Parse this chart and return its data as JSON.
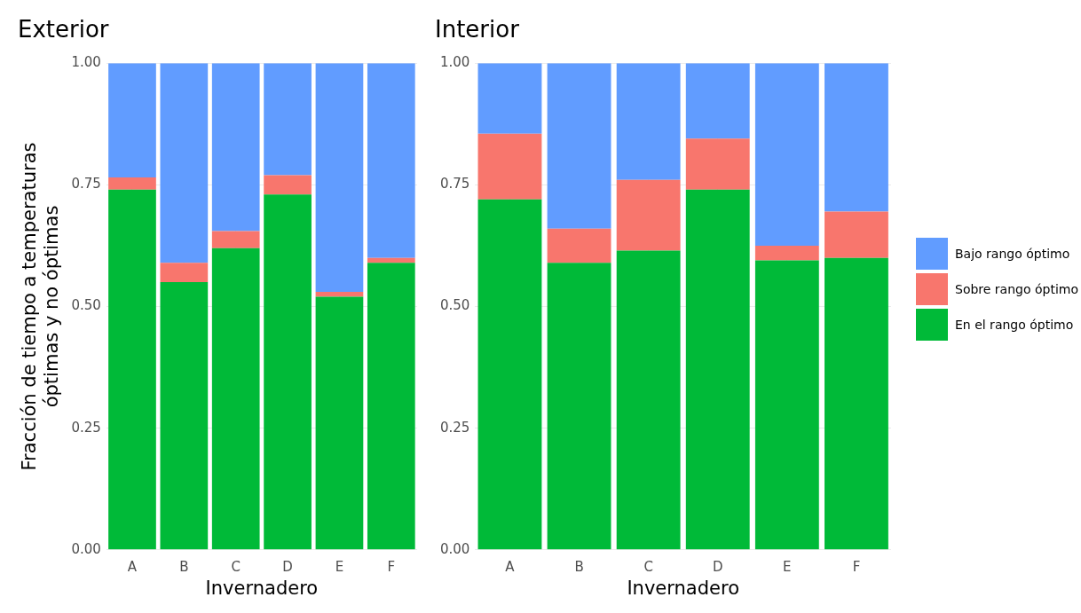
{
  "chart_data": [
    {
      "type": "bar",
      "title": "Exterior",
      "xlabel": "Invernadero",
      "ylabel": "Fracción de tiempo a temperaturas\nóptimas y no óptimas",
      "categories": [
        "A",
        "B",
        "C",
        "D",
        "E",
        "F"
      ],
      "stacked": true,
      "ylim": [
        0,
        1
      ],
      "yticks": [
        {
          "value": 0,
          "label": "0.00"
        },
        {
          "value": 0.25,
          "label": "0.25"
        },
        {
          "value": 0.5,
          "label": "0.50"
        },
        {
          "value": 0.75,
          "label": "0.75"
        },
        {
          "value": 1,
          "label": "1.00"
        }
      ],
      "grid": true,
      "legend": false,
      "series": [
        {
          "color": "#00ba38",
          "values": [
            0.74,
            0.55,
            0.62,
            0.73,
            0.52,
            0.59
          ]
        },
        {
          "color": "#f8766d",
          "values": [
            0.025,
            0.04,
            0.035,
            0.04,
            0.01,
            0.01
          ]
        },
        {
          "color": "#619cff",
          "values": [
            0.235,
            0.41,
            0.345,
            0.23,
            0.47,
            0.4
          ]
        }
      ]
    },
    {
      "type": "bar",
      "title": "Interior",
      "xlabel": "Invernadero",
      "categories": [
        "A",
        "B",
        "C",
        "D",
        "E",
        "F"
      ],
      "stacked": true,
      "ylim": [
        0,
        1
      ],
      "yticks": [
        {
          "value": 0,
          "label": "0.00"
        },
        {
          "value": 0.25,
          "label": "0.25"
        },
        {
          "value": 0.5,
          "label": "0.50"
        },
        {
          "value": 0.75,
          "label": "0.75"
        },
        {
          "value": 1,
          "label": "1.00"
        }
      ],
      "grid": true,
      "legend": "right",
      "series": [
        {
          "name": "En el rango óptimo",
          "color": "#00ba38",
          "values": [
            0.72,
            0.59,
            0.615,
            0.74,
            0.595,
            0.6
          ]
        },
        {
          "name": "Sobre rango óptimo",
          "color": "#f8766d",
          "values": [
            0.135,
            0.07,
            0.145,
            0.105,
            0.03,
            0.095
          ]
        },
        {
          "name": "Bajo rango óptimo",
          "color": "#619cff",
          "values": [
            0.145,
            0.34,
            0.24,
            0.155,
            0.375,
            0.305
          ]
        }
      ]
    }
  ]
}
